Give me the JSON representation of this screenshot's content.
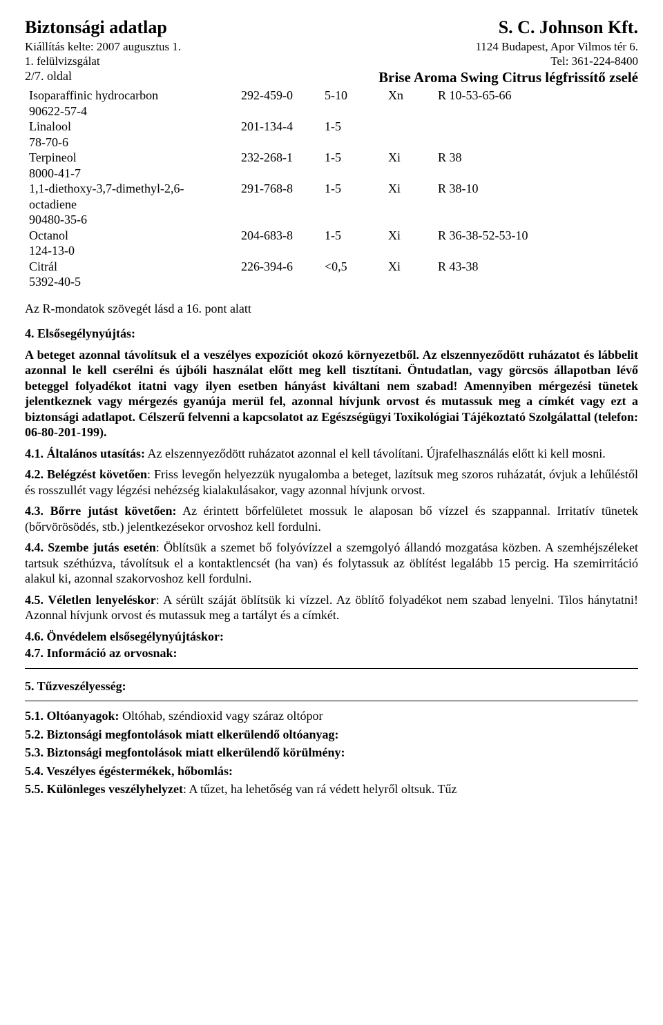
{
  "header": {
    "left_title": "Biztonsági adatlap",
    "right_title": "S. C. Johnson Kft.",
    "issue_date_label": "Kiállítás kelte: 2007 augusztus 1.",
    "address": "1124 Budapest, Apor Vilmos tér 6.",
    "revision_label": "1. felülvizsgálat",
    "phone": "Tel: 361-224-8400",
    "page_label": "2/7. oldal",
    "product_name": "Brise Aroma Swing Citrus légfrissítő zselé"
  },
  "chem_rows": [
    {
      "name": "Isoparaffinic hydrocarbon",
      "cas": "90622-57-4",
      "ec": "292-459-0",
      "conc": "5-10",
      "sym": "Xn",
      "rp": "R 10-53-65-66"
    },
    {
      "name": "Linalool",
      "cas": "78-70-6",
      "ec": "201-134-4",
      "conc": "1-5",
      "sym": "",
      "rp": ""
    },
    {
      "name": "Terpineol",
      "cas": "8000-41-7",
      "ec": "232-268-1",
      "conc": "1-5",
      "sym": "Xi",
      "rp": "R 38"
    },
    {
      "name": "1,1-diethoxy-3,7-dimethyl-2,6-octadiene",
      "cas": "90480-35-6",
      "ec": "291-768-8",
      "conc": "1-5",
      "sym": "Xi",
      "rp": "R 38-10"
    },
    {
      "name": "Octanol",
      "cas": "124-13-0",
      "ec": "204-683-8",
      "conc": "1-5",
      "sym": "Xi",
      "rp": "R 36-38-52-53-10"
    },
    {
      "name": "Citrál",
      "cas": "5392-40-5",
      "ec": "226-394-6",
      "conc": "<0,5",
      "sym": "Xi",
      "rp": "R 43-38"
    }
  ],
  "r_note": "Az R-mondatok szövegét lásd a 16. pont alatt",
  "section4": {
    "title": "4. Elsősegélynyújtás:",
    "body": "A beteget azonnal távolítsuk el a veszélyes expozíciót okozó környezetből. Az elszennyeződött ruházatot és lábbelit azonnal le kell cserélni és újbóli használat előtt meg kell tisztítani. Öntudatlan, vagy görcsös állapotban lévő beteggel folyadékot itatni vagy ilyen esetben hányást kiváltani nem szabad! Amennyiben mérgezési tünetek jelentkeznek vagy mérgezés gyanúja merül fel, azonnal hívjunk orvost és mutassuk meg a címkét vagy ezt a biztonsági adatlapot. Célszerű felvenni a kapcsolatot az Egészségügyi Toxikológiai Tájékoztató Szolgálattal (telefon: 06-80-201-199).",
    "p41_label": "4.1. Általános utasítás:",
    "p41_text": " Az elszennyeződött ruházatot azonnal el kell távolítani. Újrafelhasználás előtt ki kell mosni.",
    "p42_label": "4.2. Belégzést követően",
    "p42_text": ": Friss levegőn helyezzük nyugalomba a beteget, lazítsuk meg szoros ruházatát, óvjuk a lehűléstől és rosszullét vagy légzési nehézség kialakulásakor, vagy azonnal hívjunk orvost.",
    "p43_label": "4.3. Bőrre jutást követően:",
    "p43_text": " Az érintett bőrfelületet mossuk le alaposan bő vízzel és szappannal. Irritatív tünetek (bőrvörösödés, stb.) jelentkezésekor orvoshoz kell fordulni.",
    "p44_label": "4.4. Szembe jutás esetén",
    "p44_text": ": Öblítsük a szemet bő folyóvízzel a szemgolyó állandó mozgatása közben. A szemhéjszéleket tartsuk széthúzva, távolítsuk el a kontaktlencsét (ha van) és folytassuk az öblítést legalább 15 percig. Ha szemirritáció alakul ki, azonnal szakorvoshoz kell fordulni.",
    "p45_label": "4.5. Véletlen lenyeléskor",
    "p45_text": ": A sérült száját öblítsük ki vízzel. Az öblítő folyadékot nem szabad lenyelni. Tilos hánytatni! Azonnal hívjunk orvost és mutassuk meg a tartályt és a címkét.",
    "p46_label": "4.6. Önvédelem elsősegélynyújtáskor:",
    "p47_label": "4.7. Információ az orvosnak:"
  },
  "section5": {
    "title": "5. Tűzveszélyesség:",
    "p51_label": "5.1. Oltóanyagok:",
    "p51_text": " Oltóhab, széndioxid vagy száraz oltópor",
    "p52_label": "5.2. Biztonsági megfontolások miatt elkerülendő oltóanyag:",
    "p53_label": "5.3. Biztonsági megfontolások miatt elkerülendő körülmény:",
    "p54_label": "5.4. Veszélyes égéstermékek, hőbomlás:",
    "p55_label": "5.5. Különleges veszélyhelyzet",
    "p55_text": ": A tűzet, ha lehetőség van rá védett helyről oltsuk. Tűz"
  }
}
